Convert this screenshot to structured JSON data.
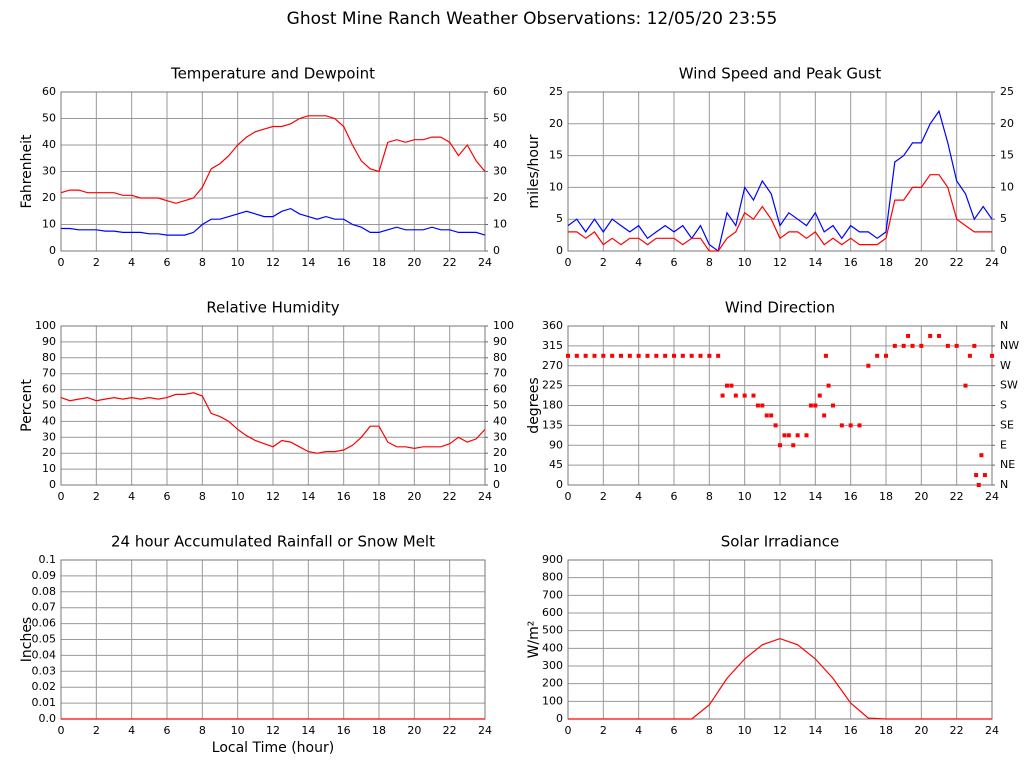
{
  "title": "Ghost Mine Ranch Weather Observations: 12/05/20 23:55",
  "chart_data": [
    {
      "type": "line",
      "title": "Temperature and Dewpoint",
      "ylabel": "Fahrenheit",
      "grid": true,
      "xlim": [
        0,
        24
      ],
      "xticks": [
        0,
        2,
        4,
        6,
        8,
        10,
        12,
        14,
        16,
        18,
        20,
        22,
        24
      ],
      "ylim": [
        0,
        60
      ],
      "yticks": [
        0,
        10,
        20,
        30,
        40,
        50,
        60
      ],
      "y2lim": [
        0,
        60
      ],
      "y2ticks": [
        0,
        10,
        20,
        30,
        40,
        50,
        60
      ],
      "x": [
        0,
        0.5,
        1,
        1.5,
        2,
        2.5,
        3,
        3.5,
        4,
        4.5,
        5,
        5.5,
        6,
        6.5,
        7,
        7.5,
        8,
        8.5,
        9,
        9.5,
        10,
        10.5,
        11,
        11.5,
        12,
        12.5,
        13,
        13.5,
        14,
        14.5,
        15,
        15.5,
        16,
        16.5,
        17,
        17.5,
        18,
        18.5,
        19,
        19.5,
        20,
        20.5,
        21,
        21.5,
        22,
        22.5,
        23,
        23.5,
        24
      ],
      "series": [
        {
          "color": "#ff0000",
          "values": [
            22,
            23,
            23,
            22,
            22,
            22,
            22,
            21,
            21,
            20,
            20,
            20,
            19,
            18,
            19,
            20,
            24,
            31,
            33,
            36,
            40,
            43,
            45,
            46,
            47,
            47,
            48,
            50,
            51,
            51,
            51,
            50,
            47,
            40,
            34,
            31,
            30,
            41,
            42,
            41,
            42,
            42,
            43,
            43,
            41,
            36,
            40,
            34,
            30
          ]
        },
        {
          "color": "#0000ff",
          "values": [
            8.5,
            8.5,
            8,
            8,
            8,
            7.5,
            7.5,
            7,
            7,
            7,
            6.5,
            6.5,
            6,
            6,
            6,
            7,
            10,
            12,
            12,
            13,
            14,
            15,
            14,
            13,
            13,
            15,
            16,
            14,
            13,
            12,
            13,
            12,
            12,
            10,
            9,
            7,
            7,
            8,
            9,
            8,
            8,
            8,
            9,
            8,
            8,
            7,
            7,
            7,
            6
          ]
        }
      ]
    },
    {
      "type": "line",
      "title": "Wind Speed and Peak Gust",
      "ylabel": "miles/hour",
      "grid": true,
      "xlim": [
        0,
        24
      ],
      "xticks": [
        0,
        2,
        4,
        6,
        8,
        10,
        12,
        14,
        16,
        18,
        20,
        22,
        24
      ],
      "ylim": [
        0,
        25
      ],
      "yticks": [
        0,
        5,
        10,
        15,
        20,
        25
      ],
      "y2lim": [
        0,
        25
      ],
      "y2ticks": [
        0,
        5,
        10,
        15,
        20,
        25
      ],
      "x": [
        0,
        0.5,
        1,
        1.5,
        2,
        2.5,
        3,
        3.5,
        4,
        4.5,
        5,
        5.5,
        6,
        6.5,
        7,
        7.5,
        8,
        8.5,
        9,
        9.5,
        10,
        10.5,
        11,
        11.5,
        12,
        12.5,
        13,
        13.5,
        14,
        14.5,
        15,
        15.5,
        16,
        16.5,
        17,
        17.5,
        18,
        18.5,
        19,
        19.5,
        20,
        20.5,
        21,
        21.5,
        22,
        22.5,
        23,
        23.5,
        24
      ],
      "series": [
        {
          "color": "#0000ff",
          "values": [
            4,
            5,
            3,
            5,
            3,
            5,
            4,
            3,
            4,
            2,
            3,
            4,
            3,
            4,
            2,
            4,
            1,
            0,
            6,
            4,
            10,
            8,
            11,
            9,
            4,
            6,
            5,
            4,
            6,
            3,
            4,
            2,
            4,
            3,
            3,
            2,
            3,
            14,
            15,
            17,
            17,
            20,
            22,
            17,
            11,
            9,
            5,
            7,
            5
          ]
        },
        {
          "color": "#ff0000",
          "values": [
            3,
            3,
            2,
            3,
            1,
            2,
            1,
            2,
            2,
            1,
            2,
            2,
            2,
            1,
            2,
            2,
            0,
            0,
            2,
            3,
            6,
            5,
            7,
            5,
            2,
            3,
            3,
            2,
            3,
            1,
            2,
            1,
            2,
            1,
            1,
            1,
            2,
            8,
            8,
            10,
            10,
            12,
            12,
            10,
            5,
            4,
            3,
            3,
            3
          ]
        }
      ]
    },
    {
      "type": "line",
      "title": "Relative Humidity",
      "ylabel": "Percent",
      "grid": true,
      "xlim": [
        0,
        24
      ],
      "xticks": [
        0,
        2,
        4,
        6,
        8,
        10,
        12,
        14,
        16,
        18,
        20,
        22,
        24
      ],
      "ylim": [
        0,
        100
      ],
      "yticks": [
        0,
        10,
        20,
        30,
        40,
        50,
        60,
        70,
        80,
        90,
        100
      ],
      "y2lim": [
        0,
        100
      ],
      "y2ticks": [
        0,
        10,
        20,
        30,
        40,
        50,
        60,
        70,
        80,
        90,
        100
      ],
      "x": [
        0,
        0.5,
        1,
        1.5,
        2,
        2.5,
        3,
        3.5,
        4,
        4.5,
        5,
        5.5,
        6,
        6.5,
        7,
        7.5,
        8,
        8.5,
        9,
        9.5,
        10,
        10.5,
        11,
        11.5,
        12,
        12.5,
        13,
        13.5,
        14,
        14.5,
        15,
        15.5,
        16,
        16.5,
        17,
        17.5,
        18,
        18.5,
        19,
        19.5,
        20,
        20.5,
        21,
        21.5,
        22,
        22.5,
        23,
        23.5,
        24
      ],
      "series": [
        {
          "color": "#ff0000",
          "values": [
            55,
            53,
            54,
            55,
            53,
            54,
            55,
            54,
            55,
            54,
            55,
            54,
            55,
            57,
            57,
            58,
            56,
            45,
            43,
            40,
            35,
            31,
            28,
            26,
            24,
            28,
            27,
            24,
            21,
            20,
            21,
            21,
            22,
            25,
            30,
            37,
            37,
            27,
            24,
            24,
            23,
            24,
            24,
            24,
            26,
            30,
            27,
            29,
            35
          ]
        }
      ]
    },
    {
      "type": "scatter",
      "title": "Wind Direction",
      "ylabel": "degrees",
      "grid": true,
      "xlim": [
        0,
        24
      ],
      "xticks": [
        0,
        2,
        4,
        6,
        8,
        10,
        12,
        14,
        16,
        18,
        20,
        22,
        24
      ],
      "ylim": [
        0,
        360
      ],
      "yticks": [
        0,
        45,
        90,
        135,
        180,
        225,
        270,
        315,
        360
      ],
      "y2lim": [
        0,
        360
      ],
      "y2ticks": [
        {
          "value": 0,
          "label": "N"
        },
        {
          "value": 45,
          "label": "NE"
        },
        {
          "value": 90,
          "label": "E"
        },
        {
          "value": 135,
          "label": "SE"
        },
        {
          "value": 180,
          "label": "S"
        },
        {
          "value": 225,
          "label": "SW"
        },
        {
          "value": 270,
          "label": "W"
        },
        {
          "value": 315,
          "label": "NW"
        },
        {
          "value": 360,
          "label": "N"
        }
      ],
      "x": [
        0,
        0.5,
        1,
        1.5,
        2,
        2.5,
        3,
        3.5,
        4,
        4.5,
        5,
        5.5,
        6,
        6.5,
        7,
        7.5,
        8,
        8.5,
        8.75,
        9,
        9.25,
        9.5,
        10,
        10.5,
        10.75,
        11,
        11.25,
        11.5,
        11.75,
        12,
        12.25,
        12.5,
        12.75,
        13,
        13.5,
        13.75,
        14,
        14.25,
        14.5,
        14.6,
        14.75,
        15,
        15.5,
        16,
        16.5,
        17,
        17.5,
        18,
        18.5,
        19,
        19.25,
        19.5,
        20,
        20.5,
        21,
        21.5,
        22,
        22.5,
        22.75,
        23,
        23.1,
        23.25,
        23.4,
        23.6,
        24
      ],
      "series": [
        {
          "color": "#ff0000",
          "values": [
            292.5,
            292.5,
            292.5,
            292.5,
            292.5,
            292.5,
            292.5,
            292.5,
            292.5,
            292.5,
            292.5,
            292.5,
            292.5,
            292.5,
            292.5,
            292.5,
            292.5,
            292.5,
            202.5,
            225,
            225,
            202.5,
            202.5,
            202.5,
            180,
            180,
            157.5,
            157.5,
            135,
            90,
            112.5,
            112.5,
            90,
            112.5,
            112.5,
            180,
            180,
            202.5,
            157.5,
            292.5,
            225,
            180,
            135,
            135,
            135,
            270,
            292.5,
            292.5,
            315,
            315,
            337.5,
            315,
            315,
            337.5,
            337.5,
            315,
            315,
            225,
            292.5,
            315,
            22.5,
            0,
            67.5,
            22.5,
            292.5
          ]
        }
      ]
    },
    {
      "type": "line",
      "title": "24 hour Accumulated Rainfall or Snow Melt",
      "ylabel": "Inches",
      "xlabel": "Local Time (hour)",
      "grid": true,
      "xlim": [
        0,
        24
      ],
      "xticks": [
        0,
        2,
        4,
        6,
        8,
        10,
        12,
        14,
        16,
        18,
        20,
        22,
        24
      ],
      "ylim": [
        0,
        0.1
      ],
      "yticks": [
        {
          "value": 0,
          "label": "0.0"
        },
        0.01,
        0.02,
        0.03,
        0.04,
        0.05,
        0.06,
        0.07,
        0.08,
        0.09,
        0.1
      ],
      "x": [
        0,
        24
      ],
      "series": [
        {
          "color": "#ff0000",
          "values": [
            0,
            0
          ]
        }
      ]
    },
    {
      "type": "line",
      "title": "Solar Irradiance",
      "ylabel": "W/m²",
      "grid": true,
      "xlim": [
        0,
        24
      ],
      "xticks": [
        0,
        2,
        4,
        6,
        8,
        10,
        12,
        14,
        16,
        18,
        20,
        22,
        24
      ],
      "ylim": [
        0,
        900
      ],
      "yticks": [
        0,
        100,
        200,
        300,
        400,
        500,
        600,
        700,
        800,
        900
      ],
      "x": [
        0,
        1,
        2,
        3,
        4,
        5,
        6,
        7,
        8,
        9,
        10,
        11,
        12,
        13,
        14,
        15,
        16,
        17,
        18,
        19,
        20,
        21,
        22,
        23,
        24
      ],
      "series": [
        {
          "color": "#ff0000",
          "values": [
            0,
            0,
            0,
            0,
            0,
            0,
            0,
            0,
            80,
            230,
            340,
            420,
            455,
            420,
            340,
            230,
            90,
            5,
            0,
            0,
            0,
            0,
            0,
            0,
            0
          ]
        }
      ]
    }
  ]
}
